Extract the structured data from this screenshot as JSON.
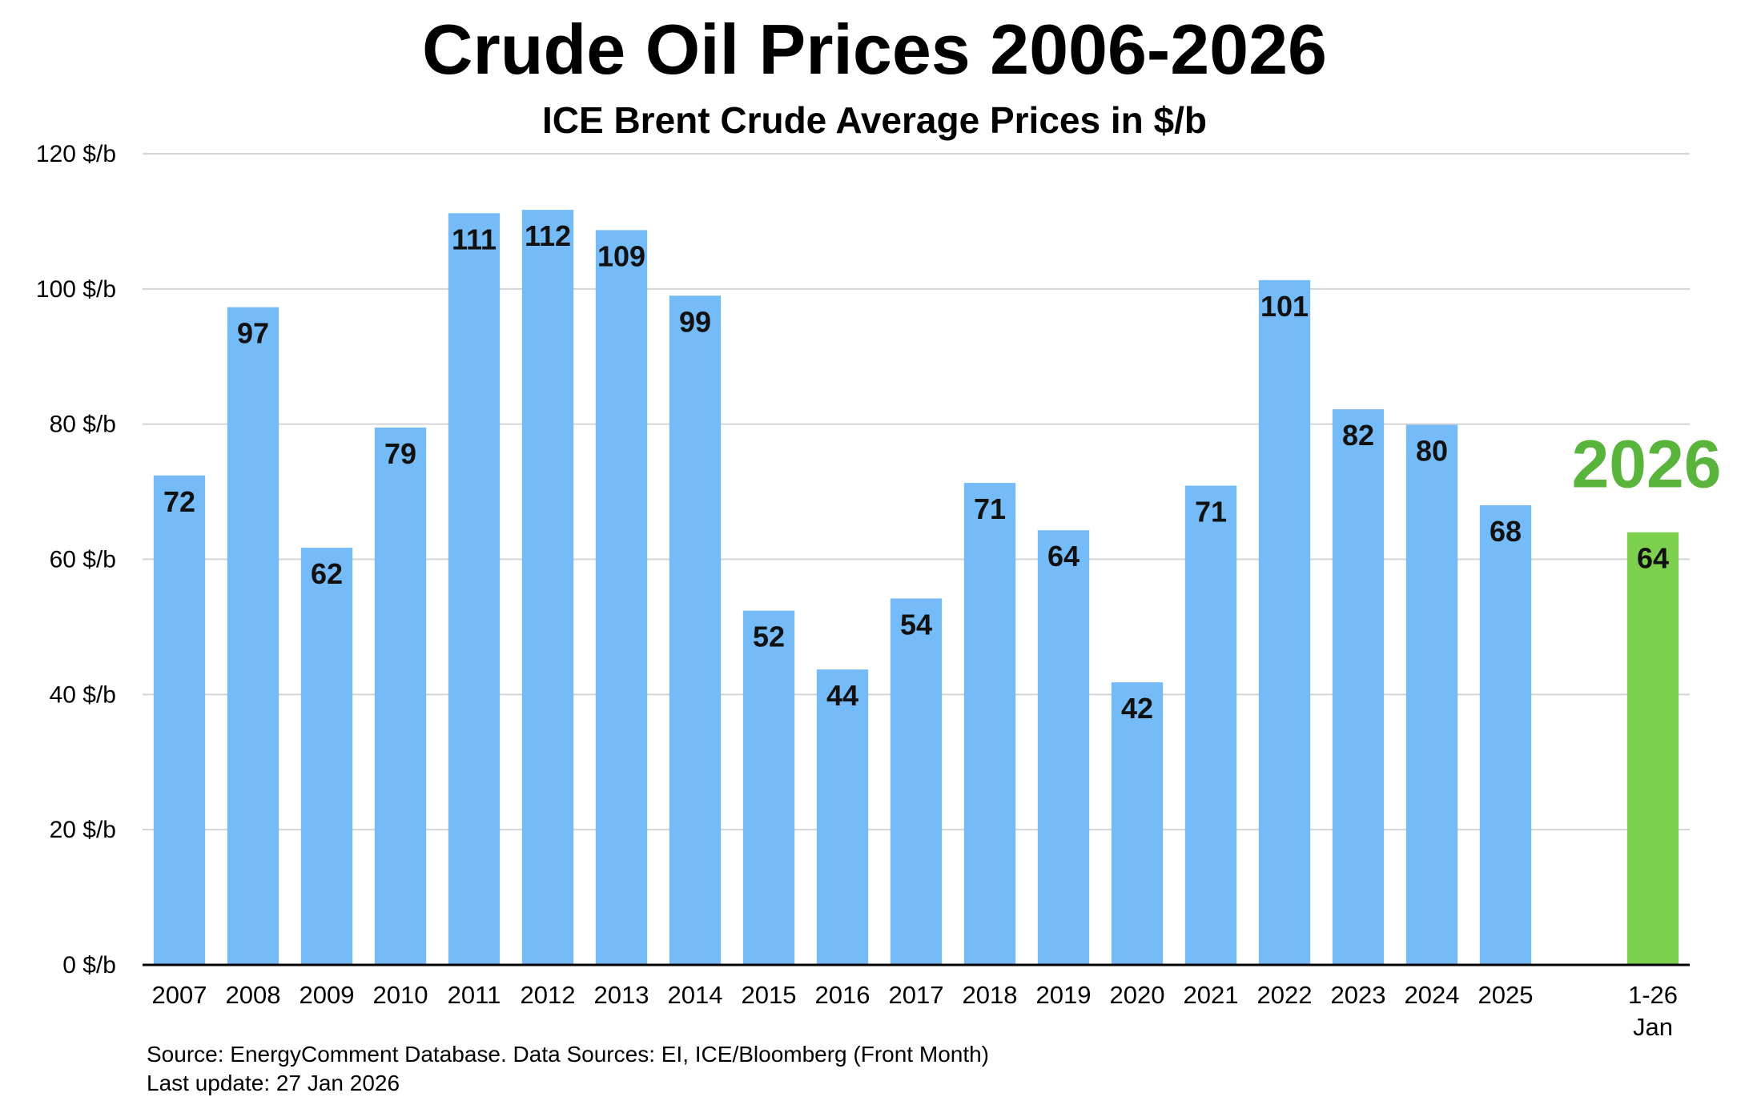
{
  "chart_data": {
    "type": "bar",
    "title": "Crude Oil Prices 2006-2026",
    "subtitle": "ICE Brent Crude Average Prices in $/b",
    "xlabel": "",
    "ylabel": "",
    "ylim": [
      0,
      120
    ],
    "y_ticks": [
      0,
      20,
      40,
      60,
      80,
      100,
      120
    ],
    "y_tick_labels": [
      "0 $/b",
      "20 $/b",
      "40 $/b",
      "60 $/b",
      "80 $/b",
      "100 $/b",
      "120 $/b"
    ],
    "grid": true,
    "categories": [
      "2007",
      "2008",
      "2009",
      "2010",
      "2011",
      "2012",
      "2013",
      "2014",
      "2015",
      "2016",
      "2017",
      "2018",
      "2019",
      "2020",
      "2021",
      "2022",
      "2023",
      "2024",
      "2025",
      "1-26 Jan"
    ],
    "category_display_lines": [
      [
        "2007"
      ],
      [
        "2008"
      ],
      [
        "2009"
      ],
      [
        "2010"
      ],
      [
        "2011"
      ],
      [
        "2012"
      ],
      [
        "2013"
      ],
      [
        "2014"
      ],
      [
        "2015"
      ],
      [
        "2016"
      ],
      [
        "2017"
      ],
      [
        "2018"
      ],
      [
        "2019"
      ],
      [
        "2020"
      ],
      [
        "2021"
      ],
      [
        "2022"
      ],
      [
        "2023"
      ],
      [
        "2024"
      ],
      [
        "2025"
      ],
      [
        "1-26",
        "Jan"
      ]
    ],
    "values": [
      72.4,
      97.3,
      61.7,
      79.5,
      111.2,
      111.7,
      108.7,
      99.0,
      52.4,
      43.7,
      54.2,
      71.3,
      64.3,
      41.8,
      70.9,
      101.3,
      82.2,
      79.9,
      68.0,
      64.0
    ],
    "value_labels": [
      "72",
      "97",
      "62",
      "79",
      "111",
      "112",
      "109",
      "99",
      "52",
      "44",
      "54",
      "71",
      "64",
      "42",
      "71",
      "101",
      "82",
      "80",
      "68",
      "64"
    ],
    "category_gap_before_index": 19,
    "highlight_index": 19,
    "highlight_label": "2026",
    "bar_color": "#74bbf7",
    "highlight_bar_color": "#7ed14e",
    "highlight_label_color": "#58b43a",
    "grid_color": "#d4d4d4",
    "axis_color": "#000000"
  },
  "footer": {
    "source": "Source: EnergyComment Database. Data Sources: EI, ICE/Bloomberg (Front Month)",
    "updated": "Last update: 27 Jan 2026"
  }
}
